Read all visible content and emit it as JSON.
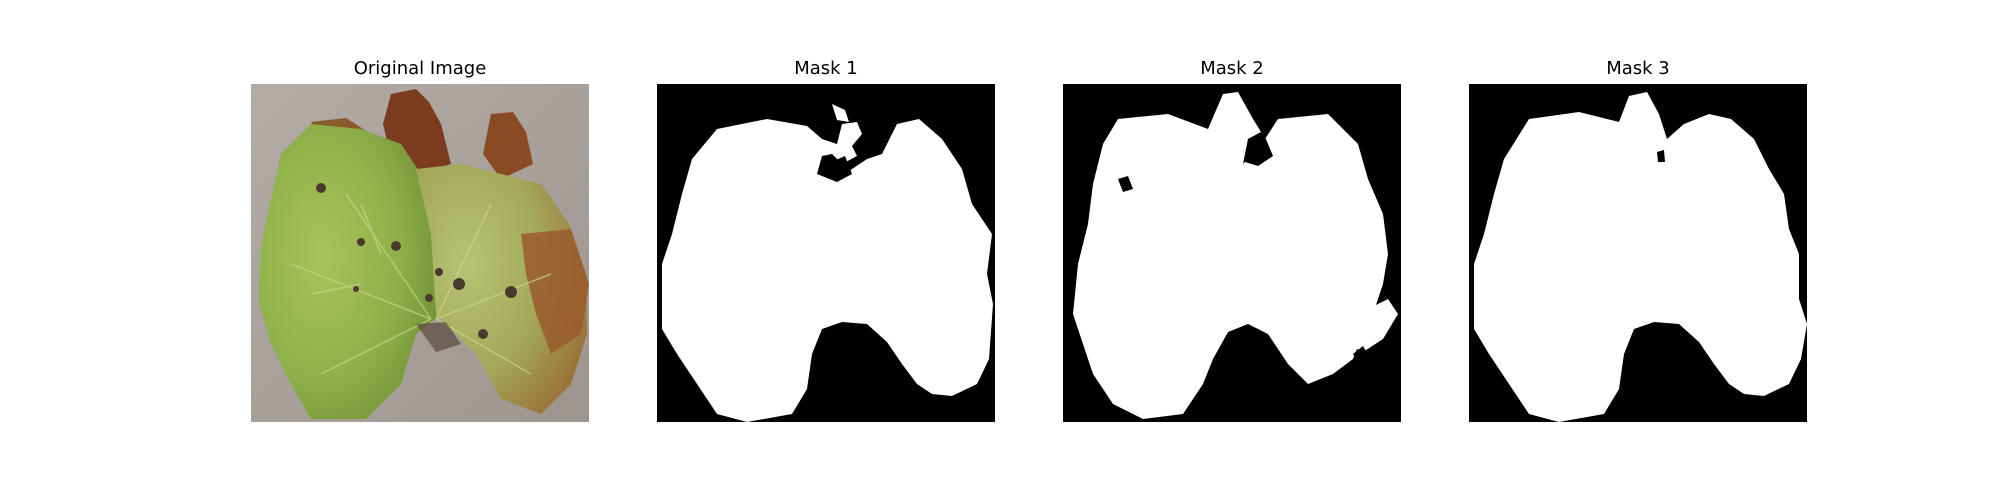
{
  "figure": {
    "panels": [
      {
        "title": "Original Image",
        "kind": "photo"
      },
      {
        "title": "Mask 1",
        "kind": "mask"
      },
      {
        "title": "Mask 2",
        "kind": "mask"
      },
      {
        "title": "Mask 3",
        "kind": "mask"
      }
    ]
  },
  "colors": {
    "background": "#ffffff",
    "mask_foreground": "#ffffff",
    "mask_background": "#000000",
    "leaf_green": "#8fb04a",
    "leaf_brown": "#8a4a24",
    "surface_gray": "#a9a29b"
  }
}
